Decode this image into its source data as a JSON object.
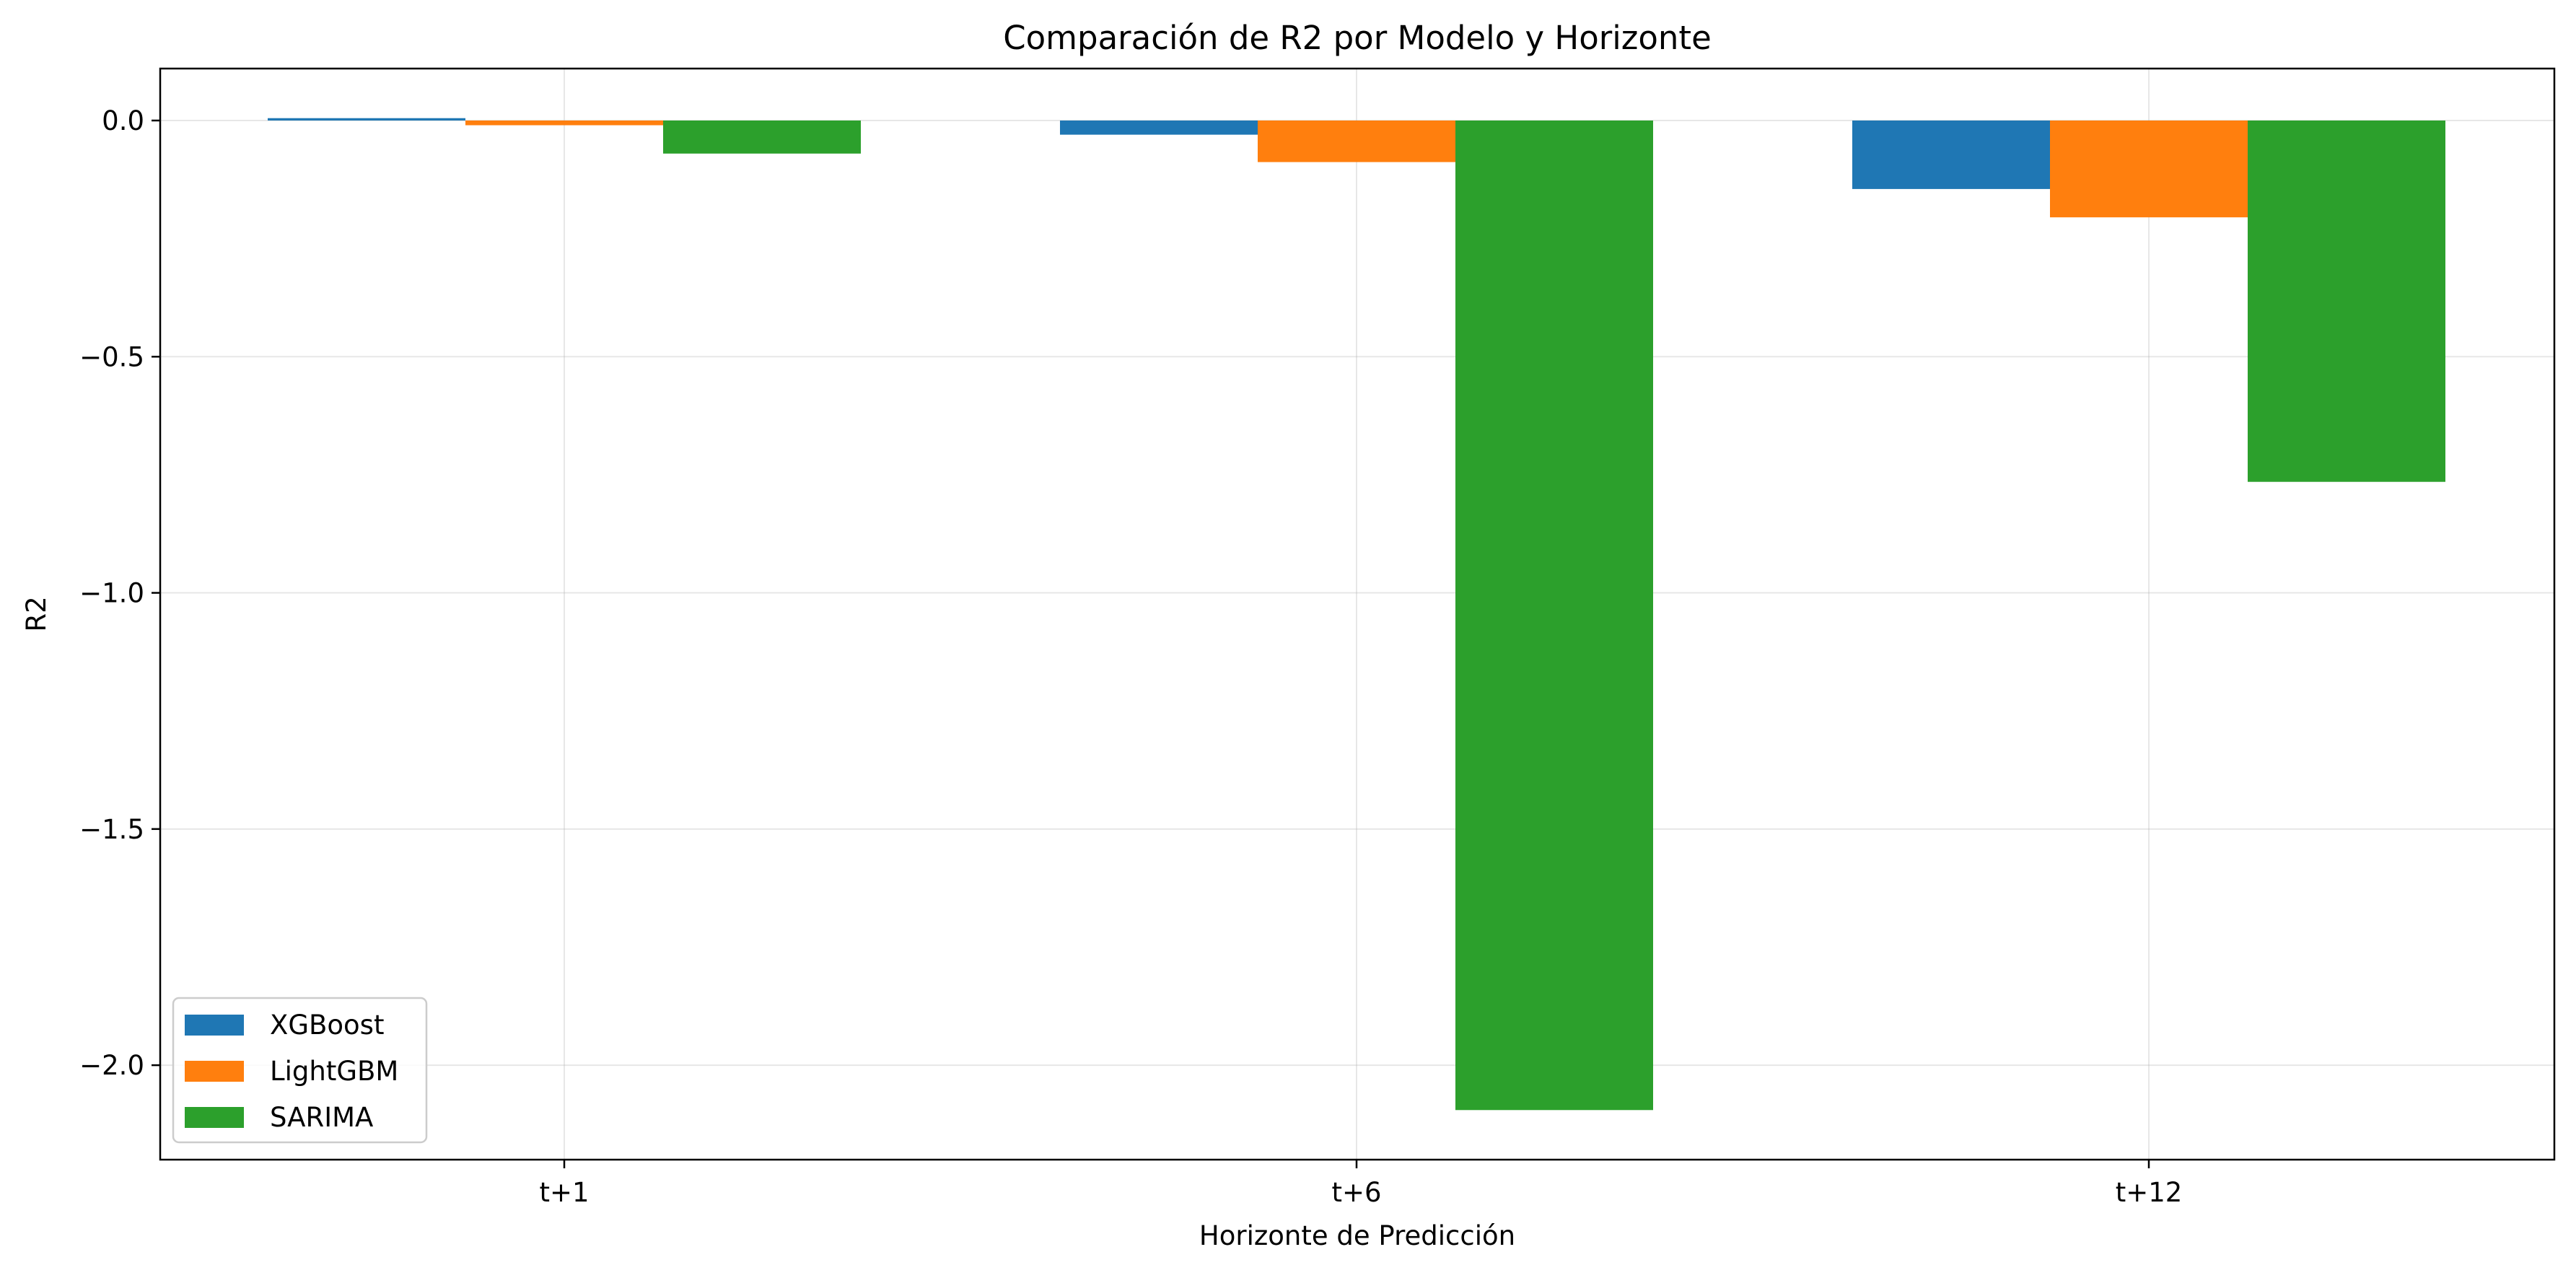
{
  "chart_data": {
    "type": "bar",
    "title": "Comparación de R2 por Modelo y Horizonte",
    "xlabel": "Horizonte de Predicción",
    "ylabel": "R2",
    "categories": [
      "t+1",
      "t+6",
      "t+12"
    ],
    "series": [
      {
        "name": "XGBoost",
        "color": "#1f77b4",
        "values": [
          0.005,
          -0.03,
          -0.145
        ]
      },
      {
        "name": "LightGBM",
        "color": "#ff7f0e",
        "values": [
          -0.01,
          -0.088,
          -0.205
        ]
      },
      {
        "name": "SARIMA",
        "color": "#2ca02c",
        "values": [
          -0.07,
          -2.095,
          -0.765
        ]
      }
    ],
    "ylim": [
      -2.2,
      0.11
    ],
    "yticks": [
      0.0,
      -0.5,
      -1.0,
      -1.5,
      -2.0
    ],
    "ytick_labels": [
      "0.0",
      "−0.5",
      "−1.0",
      "−1.5",
      "−2.0"
    ],
    "grid": true,
    "legend_position": "lower-left"
  }
}
